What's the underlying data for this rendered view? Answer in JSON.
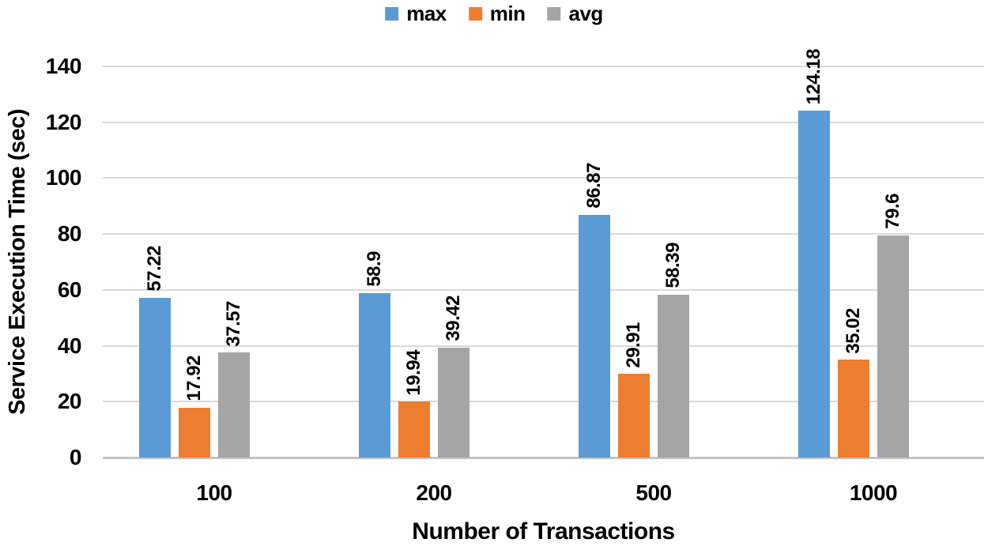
{
  "chart_data": {
    "type": "bar",
    "title": "",
    "xlabel": "Number of Transactions",
    "ylabel": "Service Execution Time (sec)",
    "categories": [
      "100",
      "200",
      "500",
      "1000"
    ],
    "series": [
      {
        "name": "max",
        "color": "#5B9BD5",
        "values": [
          57.22,
          58.9,
          86.87,
          124.18
        ],
        "labels": [
          "57.22",
          "58.9",
          "86.87",
          "124.18"
        ]
      },
      {
        "name": "min",
        "color": "#ED7D31",
        "values": [
          17.92,
          19.94,
          29.91,
          35.02
        ],
        "labels": [
          "17.92",
          "19.94",
          "29.91",
          "35.02"
        ]
      },
      {
        "name": "avg",
        "color": "#A5A5A5",
        "values": [
          37.57,
          39.42,
          58.39,
          79.6
        ],
        "labels": [
          "37.57",
          "39.42",
          "58.39",
          "79.6"
        ]
      }
    ],
    "ylim": [
      0,
      140
    ],
    "ytick_step": 20,
    "yticks": [
      "0",
      "20",
      "40",
      "60",
      "80",
      "100",
      "120",
      "140"
    ],
    "grid": true,
    "legend_position": "top-center",
    "data_label_rotation": "vertical-bottom-to-top",
    "colors": {
      "gridline": "#D9D9D9",
      "axis_line": "#C3C3C3",
      "text": "#000000",
      "background": "#FFFFFF"
    }
  }
}
